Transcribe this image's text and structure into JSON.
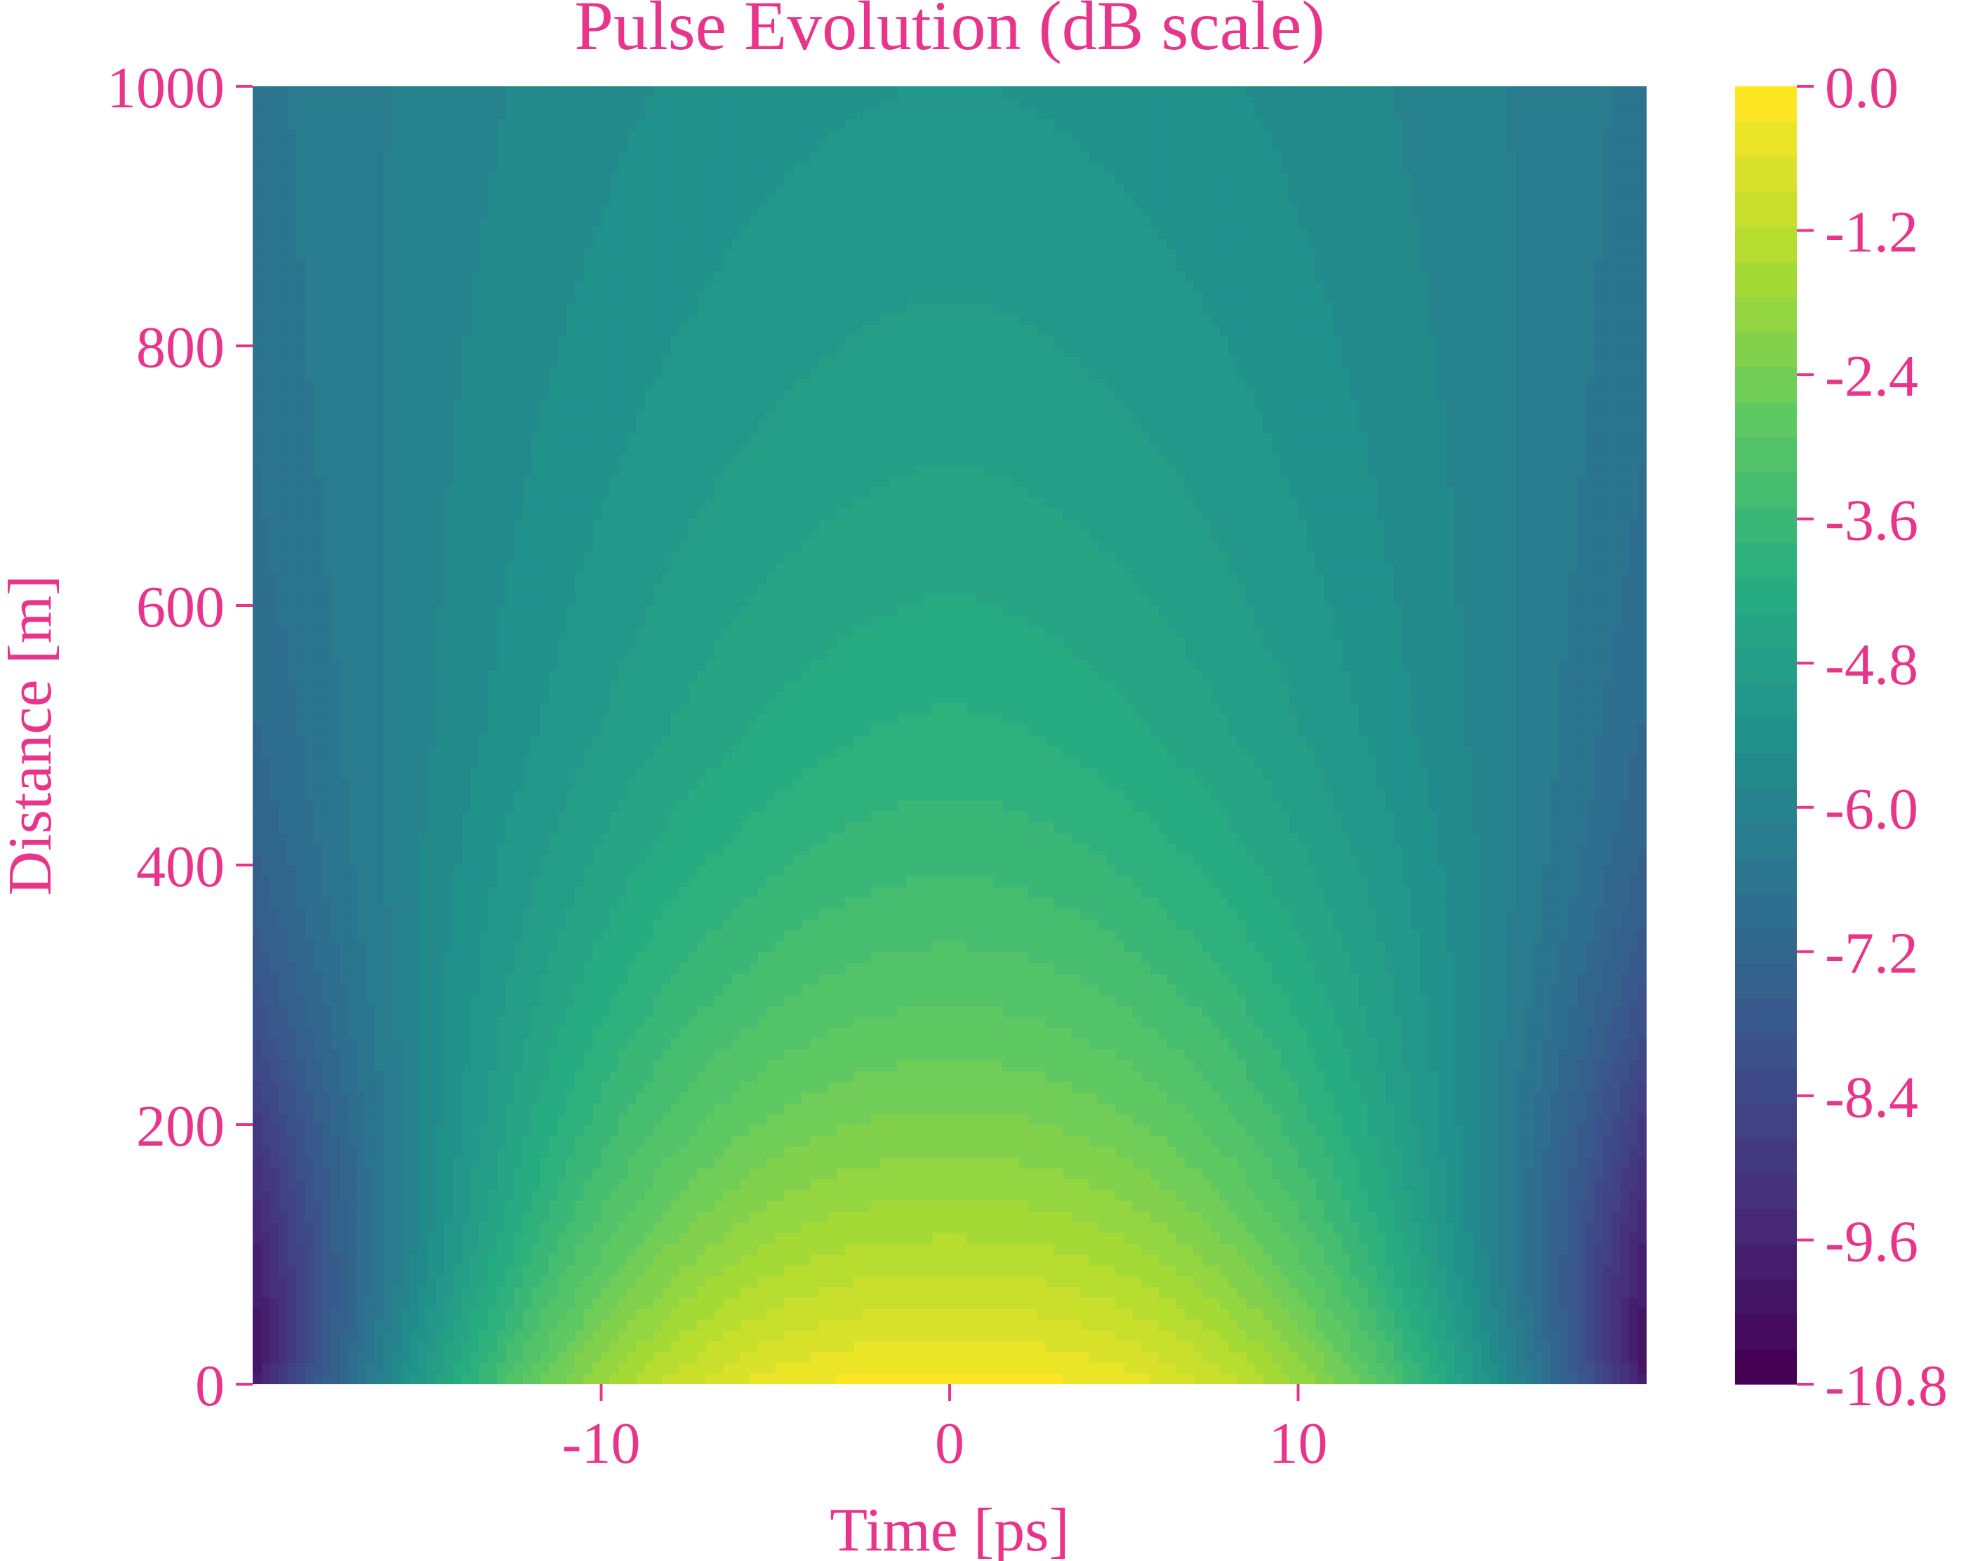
{
  "chart_data": {
    "type": "heatmap",
    "plot_kind": "filled-contour",
    "title": "Pulse Evolution (dB scale)",
    "xlabel": "Time [ps]",
    "ylabel": "Distance [m]",
    "xlim": [
      -20,
      20
    ],
    "ylim": [
      0,
      1000
    ],
    "xticks": [
      -10,
      0,
      10
    ],
    "xtick_labels": [
      "-10",
      "0",
      "10"
    ],
    "yticks": [
      0,
      200,
      400,
      600,
      800,
      1000
    ],
    "ytick_labels": [
      "0",
      "200",
      "400",
      "600",
      "800",
      "1000"
    ],
    "colorbar": {
      "min": -10.8,
      "max": 0.0,
      "colormap": "viridis",
      "levels": 37,
      "ticks": [
        0.0,
        -1.2,
        -2.4,
        -3.6,
        -4.8,
        -6.0,
        -7.2,
        -8.4,
        -9.6,
        -10.8
      ],
      "tick_labels": [
        "0.0",
        "-1.2",
        "-2.4",
        "-3.6",
        "-4.8",
        "-6.0",
        "-7.2",
        "-8.4",
        "-9.6",
        "-10.8"
      ]
    },
    "field_samples": [
      {
        "time_ps": 0,
        "distance_m": 0,
        "db": 0.0
      },
      {
        "time_ps": 0,
        "distance_m": 200,
        "db": -1.2
      },
      {
        "time_ps": 0,
        "distance_m": 500,
        "db": -3.0
      },
      {
        "time_ps": 0,
        "distance_m": 1000,
        "db": -5.0
      },
      {
        "time_ps": -10,
        "distance_m": 0,
        "db": -3.6
      },
      {
        "time_ps": 10,
        "distance_m": 0,
        "db": -3.6
      },
      {
        "time_ps": -20,
        "distance_m": 0,
        "db": -10.8
      },
      {
        "time_ps": 20,
        "distance_m": 0,
        "db": -10.8
      },
      {
        "time_ps": -20,
        "distance_m": 400,
        "db": -6.0
      },
      {
        "time_ps": -20,
        "distance_m": 1000,
        "db": -5.6
      }
    ],
    "grid": false,
    "legend": "colorbar-right",
    "label_color": "#e8348a"
  }
}
